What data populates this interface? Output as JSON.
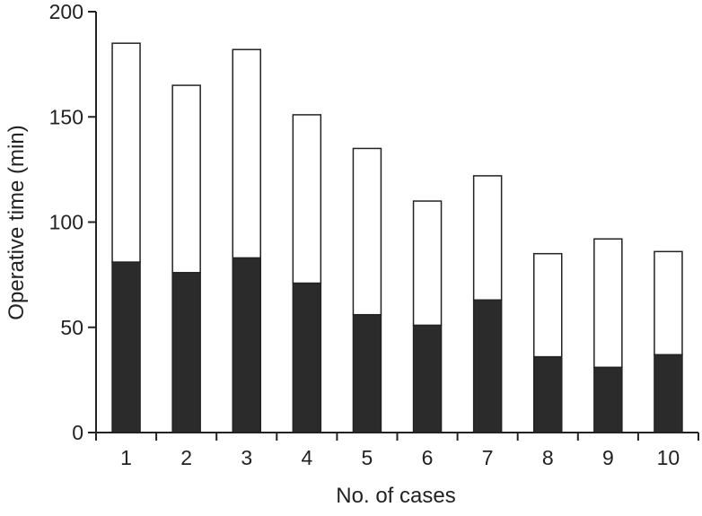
{
  "chart_data": {
    "type": "bar",
    "stacked": true,
    "title": "",
    "xlabel": "No. of cases",
    "ylabel": "Operative time (min)",
    "ylim": [
      0,
      200
    ],
    "yticks": [
      0,
      50,
      100,
      150,
      200
    ],
    "grid": false,
    "categories": [
      "1",
      "2",
      "3",
      "4",
      "5",
      "6",
      "7",
      "8",
      "9",
      "10"
    ],
    "series": [
      {
        "color": "#2b2b2b",
        "values": [
          81,
          76,
          83,
          71,
          56,
          51,
          63,
          36,
          31,
          37
        ]
      },
      {
        "color": "#ffffff",
        "values": [
          104,
          89,
          99,
          80,
          79,
          59,
          59,
          49,
          61,
          49
        ]
      }
    ],
    "totals": [
      185,
      165,
      182,
      151,
      135,
      110,
      122,
      85,
      92,
      86
    ]
  }
}
